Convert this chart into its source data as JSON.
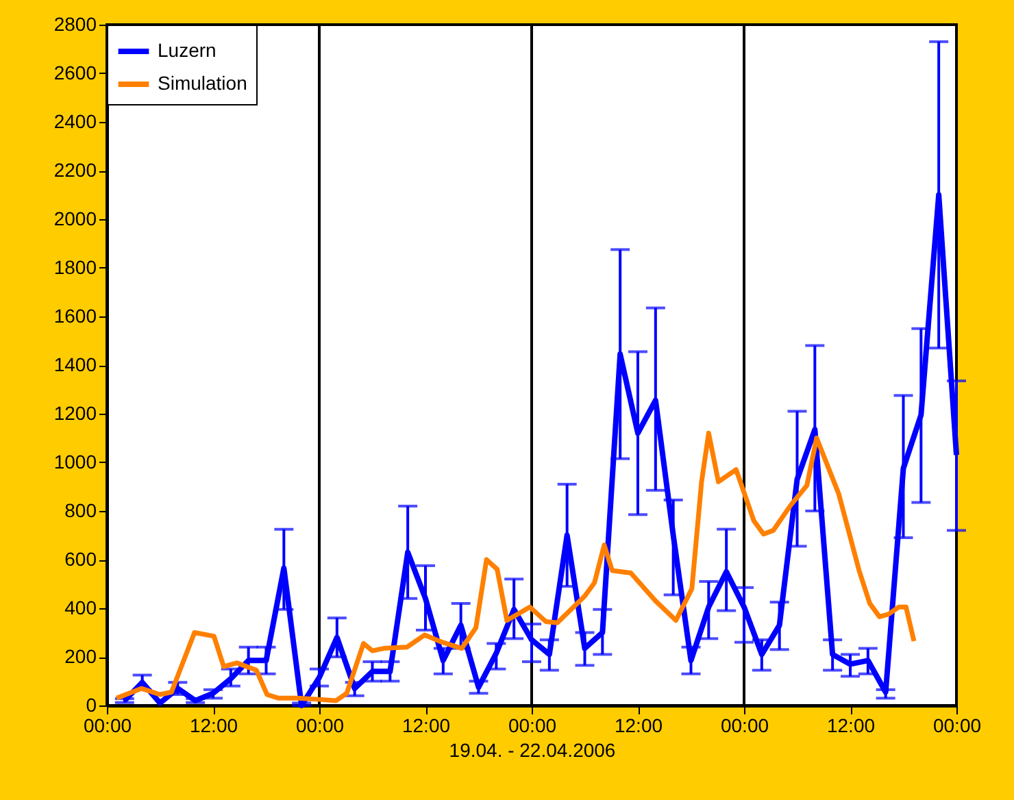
{
  "chart_data": {
    "type": "line",
    "xlabel": "19.04. - 22.04.2006",
    "xlim": [
      "2006-04-19T00:00",
      "2006-04-23T00:00"
    ],
    "xticks": [
      {
        "value": "2006-04-19T00:00",
        "label": "00:00"
      },
      {
        "value": "2006-04-19T12:00",
        "label": "12:00"
      },
      {
        "value": "2006-04-20T00:00",
        "label": "00:00"
      },
      {
        "value": "2006-04-20T12:00",
        "label": "12:00"
      },
      {
        "value": "2006-04-21T00:00",
        "label": "00:00"
      },
      {
        "value": "2006-04-21T12:00",
        "label": "12:00"
      },
      {
        "value": "2006-04-22T00:00",
        "label": "00:00"
      },
      {
        "value": "2006-04-22T12:00",
        "label": "12:00"
      },
      {
        "value": "2006-04-23T00:00",
        "label": "00:00"
      }
    ],
    "ylim": [
      0,
      2800
    ],
    "yticks": [
      0,
      200,
      400,
      600,
      800,
      1000,
      1200,
      1400,
      1600,
      1800,
      2000,
      2200,
      2400,
      2600,
      2800
    ],
    "legend": "top left",
    "grid": false,
    "ref_lines": [
      {
        "axis": "x",
        "value": "2006-04-20T00:00",
        "color": "#000000"
      },
      {
        "axis": "x",
        "value": "2006-04-21T00:00",
        "color": "#000000"
      },
      {
        "axis": "x",
        "value": "2006-04-22T00:00",
        "color": "#000000"
      }
    ],
    "series": [
      {
        "name": "Luzern",
        "color": "#0000ff",
        "x": [
          "2006-04-19T02:00",
          "2006-04-19T04:00",
          "2006-04-19T06:00",
          "2006-04-19T08:00",
          "2006-04-19T10:00",
          "2006-04-19T12:00",
          "2006-04-19T14:00",
          "2006-04-19T16:00",
          "2006-04-19T18:00",
          "2006-04-19T20:00",
          "2006-04-19T22:00",
          "2006-04-20T00:00",
          "2006-04-20T02:00",
          "2006-04-20T04:00",
          "2006-04-20T06:00",
          "2006-04-20T08:00",
          "2006-04-20T10:00",
          "2006-04-20T12:00",
          "2006-04-20T14:00",
          "2006-04-20T16:00",
          "2006-04-20T18:00",
          "2006-04-20T20:00",
          "2006-04-20T22:00",
          "2006-04-21T00:00",
          "2006-04-21T02:00",
          "2006-04-21T04:00",
          "2006-04-21T06:00",
          "2006-04-21T08:00",
          "2006-04-21T10:00",
          "2006-04-21T12:00",
          "2006-04-21T14:00",
          "2006-04-21T16:00",
          "2006-04-21T18:00",
          "2006-04-21T20:00",
          "2006-04-21T22:00",
          "2006-04-22T00:00",
          "2006-04-22T02:00",
          "2006-04-22T04:00",
          "2006-04-22T06:00",
          "2006-04-22T08:00",
          "2006-04-22T10:00",
          "2006-04-22T12:00",
          "2006-04-22T14:00",
          "2006-04-22T16:00",
          "2006-04-22T18:00",
          "2006-04-22T20:00",
          "2006-04-22T22:00",
          "2006-04-23T00:00"
        ],
        "values": [
          20,
          95,
          10,
          70,
          20,
          50,
          110,
          185,
          185,
          565,
          0,
          115,
          280,
          70,
          140,
          140,
          630,
          440,
          185,
          330,
          75,
          215,
          395,
          270,
          210,
          700,
          235,
          300,
          1445,
          1120,
          1255,
          700,
          185,
          405,
          550,
          405,
          210,
          330,
          930,
          1135,
          210,
          170,
          185,
          55,
          975,
          1195,
          2100,
          1030
        ],
        "errors": [
          [
            12,
            28
          ],
          [
            65,
            125
          ],
          null,
          [
            45,
            95
          ],
          [
            12,
            28
          ],
          [
            30,
            65
          ],
          [
            80,
            150
          ],
          [
            130,
            240
          ],
          [
            130,
            240
          ],
          [
            395,
            725
          ],
          [
            0,
            10
          ],
          [
            80,
            150
          ],
          [
            200,
            360
          ],
          [
            40,
            95
          ],
          [
            100,
            180
          ],
          [
            100,
            180
          ],
          [
            440,
            820
          ],
          [
            310,
            575
          ],
          [
            130,
            235
          ],
          [
            235,
            420
          ],
          [
            50,
            100
          ],
          [
            150,
            255
          ],
          [
            275,
            520
          ],
          [
            180,
            335
          ],
          [
            145,
            270
          ],
          [
            490,
            910
          ],
          [
            165,
            300
          ],
          [
            210,
            395
          ],
          [
            1015,
            1875
          ],
          [
            785,
            1455
          ],
          [
            885,
            1635
          ],
          [
            455,
            845
          ],
          [
            130,
            240
          ],
          [
            275,
            510
          ],
          [
            390,
            725
          ],
          [
            260,
            485
          ],
          [
            145,
            270
          ],
          [
            230,
            425
          ],
          [
            655,
            1210
          ],
          [
            800,
            1480
          ],
          [
            145,
            270
          ],
          [
            120,
            210
          ],
          [
            130,
            235
          ],
          [
            30,
            65
          ],
          [
            690,
            1275
          ],
          [
            835,
            1550
          ],
          [
            1470,
            2730
          ],
          [
            720,
            1335
          ]
        ]
      },
      {
        "name": "Simulation",
        "color": "#ff8000",
        "x": [
          "2006-04-19T01:06",
          "2006-04-19T03:54",
          "2006-04-19T06:00",
          "2006-04-19T07:18",
          "2006-04-19T09:54",
          "2006-04-19T12:06",
          "2006-04-19T13:12",
          "2006-04-19T14:42",
          "2006-04-19T16:54",
          "2006-04-19T18:06",
          "2006-04-19T19:24",
          "2006-04-19T21:30",
          "2006-04-20T00:00",
          "2006-04-20T01:54",
          "2006-04-20T03:06",
          "2006-04-20T05:00",
          "2006-04-20T06:00",
          "2006-04-20T07:18",
          "2006-04-20T09:54",
          "2006-04-20T11:54",
          "2006-04-20T13:54",
          "2006-04-20T16:06",
          "2006-04-20T17:42",
          "2006-04-20T18:54",
          "2006-04-20T20:06",
          "2006-04-20T21:12",
          "2006-04-20T23:48",
          "2006-04-21T01:36",
          "2006-04-21T02:54",
          "2006-04-21T06:00",
          "2006-04-21T07:06",
          "2006-04-21T08:12",
          "2006-04-21T09:06",
          "2006-04-21T11:12",
          "2006-04-21T14:00",
          "2006-04-21T16:18",
          "2006-04-21T18:06",
          "2006-04-21T19:12",
          "2006-04-21T20:00",
          "2006-04-21T21:06",
          "2006-04-21T23:06",
          "2006-04-22T01:06",
          "2006-04-22T02:12",
          "2006-04-22T03:18",
          "2006-04-22T05:18",
          "2006-04-22T07:06",
          "2006-04-22T08:12",
          "2006-04-22T10:42",
          "2006-04-22T13:00",
          "2006-04-22T14:12",
          "2006-04-22T15:18",
          "2006-04-22T16:18",
          "2006-04-22T17:30",
          "2006-04-22T18:18",
          "2006-04-22T19:12"
        ],
        "values": [
          30,
          70,
          45,
          55,
          300,
          285,
          160,
          175,
          145,
          45,
          30,
          30,
          25,
          20,
          50,
          255,
          225,
          235,
          240,
          290,
          260,
          235,
          320,
          600,
          560,
          350,
          405,
          345,
          340,
          450,
          505,
          660,
          555,
          545,
          430,
          350,
          480,
          920,
          1120,
          920,
          970,
          760,
          705,
          720,
          825,
          905,
          1100,
          870,
          555,
          420,
          365,
          375,
          405,
          405,
          265
        ]
      }
    ]
  }
}
